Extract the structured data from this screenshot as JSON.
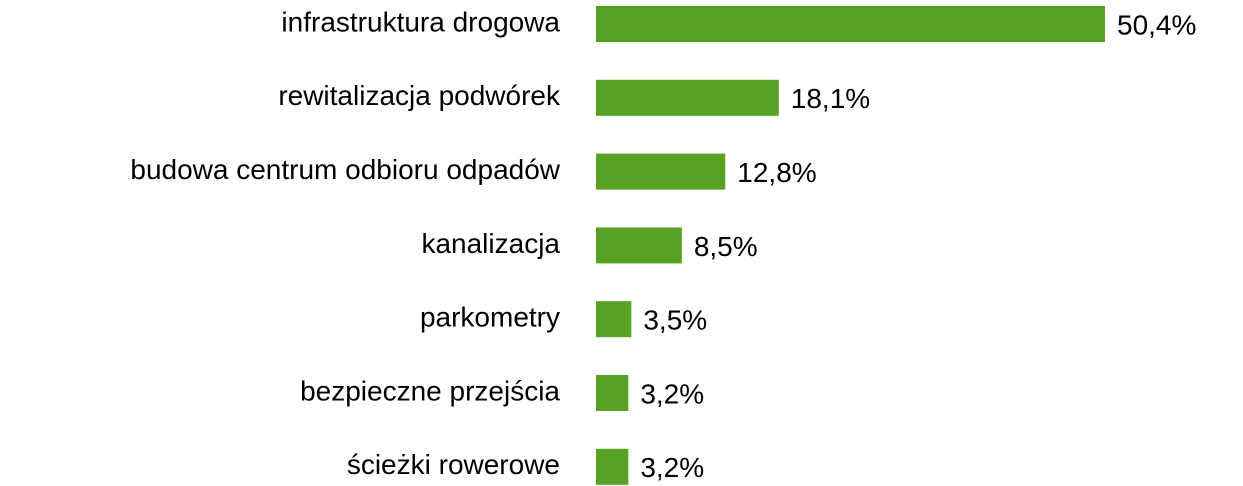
{
  "chart_data": {
    "type": "hbar",
    "categories": [
      "infrastruktura drogowa",
      "rewitalizacja podwórek",
      "budowa centrum odbioru odpadów",
      "kanalizacja",
      "parkometry",
      "bezpieczne przejścia",
      "ścieżki rowerowe"
    ],
    "values": [
      50.4,
      18.1,
      12.8,
      8.5,
      3.5,
      3.2,
      3.2
    ],
    "value_labels": [
      "50,4%",
      "18,1%",
      "12,8%",
      "8,5%",
      "3,5%",
      "3,2%",
      "3,2%"
    ],
    "color": "#57a125"
  }
}
